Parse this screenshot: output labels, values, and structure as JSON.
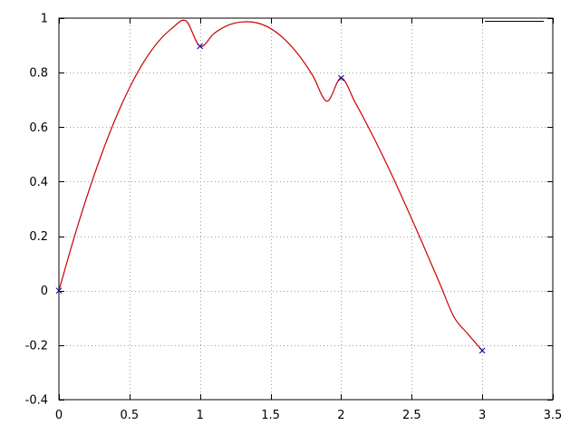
{
  "chart_data": {
    "type": "line",
    "title": "",
    "xlabel": "",
    "ylabel": "",
    "xlim": [
      0,
      3.5
    ],
    "ylim": [
      -0.4,
      1.0
    ],
    "grid": true,
    "legend_position": "top-right",
    "x_ticks": [
      0,
      0.5,
      1,
      1.5,
      2,
      2.5,
      3,
      3.5
    ],
    "x_tick_labels": [
      "0",
      "0.5",
      "1",
      "1.5",
      "2",
      "2.5",
      "3",
      "3.5"
    ],
    "y_ticks": [
      -0.4,
      -0.2,
      0,
      0.2,
      0.4,
      0.6,
      0.8,
      1.0
    ],
    "y_tick_labels": [
      "-0.4",
      "-0.2",
      "0",
      "0.2",
      "0.4",
      "0.6",
      "0.8",
      "1"
    ],
    "series": [
      {
        "kind": "curve",
        "color": "#cc0000",
        "legend_color": "#000000",
        "x": [
          0,
          0.1,
          0.2,
          0.3,
          0.4,
          0.5,
          0.6,
          0.7,
          0.8,
          0.9,
          1.0,
          1.1,
          1.2,
          1.3,
          1.4,
          1.5,
          1.6,
          1.7,
          1.8,
          1.9,
          2.0,
          2.1,
          2.2,
          2.3,
          2.4,
          2.5,
          2.6,
          2.7,
          2.8,
          2.9,
          3.0
        ],
        "y": [
          0,
          0.181,
          0.347,
          0.497,
          0.63,
          0.744,
          0.838,
          0.911,
          0.962,
          0.99,
          0.897,
          0.944,
          0.974,
          0.986,
          0.983,
          0.962,
          0.922,
          0.864,
          0.788,
          0.695,
          0.78,
          0.69,
          0.593,
          0.489,
          0.379,
          0.264,
          0.145,
          0.025,
          -0.097,
          -0.16,
          -0.22
        ]
      },
      {
        "kind": "points",
        "color": "#000099",
        "marker": "x",
        "x": [
          0,
          1,
          2,
          3
        ],
        "y": [
          0,
          0.897,
          0.78,
          -0.22
        ]
      }
    ]
  }
}
